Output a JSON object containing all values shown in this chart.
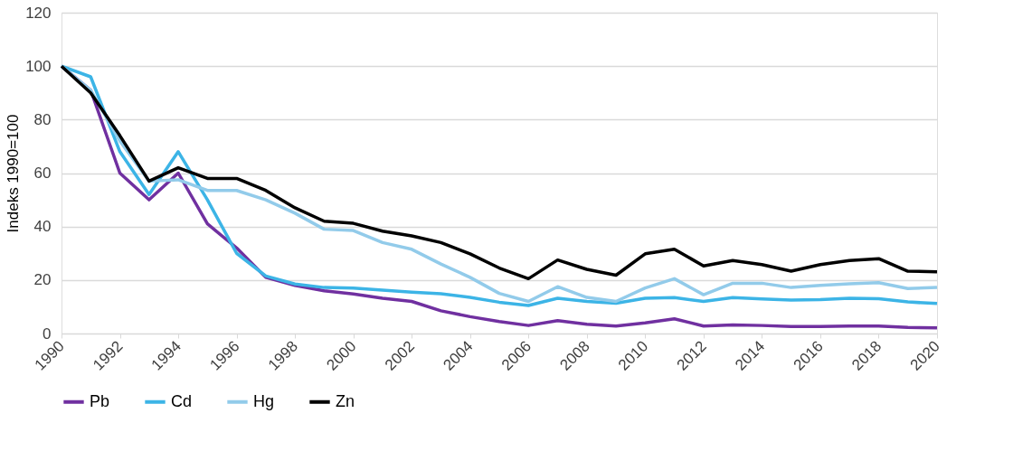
{
  "chart_data": {
    "type": "line",
    "ylabel": "Indeks 1990=100",
    "x": [
      1990,
      1991,
      1992,
      1993,
      1994,
      1995,
      1996,
      1997,
      1998,
      1999,
      2000,
      2001,
      2002,
      2003,
      2004,
      2005,
      2006,
      2007,
      2008,
      2009,
      2010,
      2011,
      2012,
      2013,
      2014,
      2015,
      2016,
      2017,
      2018,
      2019,
      2020
    ],
    "series": [
      {
        "name": "Pb",
        "color": "#7030a0",
        "values": [
          100,
          91,
          60,
          50,
          60,
          41,
          32,
          21,
          18,
          16,
          14.8,
          13.2,
          12,
          8.5,
          6.3,
          4.5,
          3,
          4.8,
          3.5,
          2.8,
          4,
          5.5,
          2.8,
          3.2,
          3,
          2.6,
          2.6,
          2.8,
          2.8,
          2.3,
          2.1
        ]
      },
      {
        "name": "Cd",
        "color": "#3cb4e6",
        "values": [
          100,
          96,
          68,
          52,
          68,
          50,
          30,
          21.5,
          18.5,
          17.2,
          17,
          16.2,
          15.5,
          14.9,
          13.5,
          11.7,
          10.5,
          13.2,
          12,
          11.3,
          13.2,
          13.4,
          12,
          13.4,
          12.9,
          12.5,
          12.7,
          13.2,
          13,
          11.8,
          11.2
        ]
      },
      {
        "name": "Hg",
        "color": "#92cbea",
        "values": [
          100,
          91,
          72,
          57,
          57.5,
          53.5,
          53.5,
          50,
          45,
          39,
          38.5,
          34,
          31.5,
          26,
          21,
          15,
          12,
          17.5,
          13.5,
          12,
          17,
          20.5,
          14.5,
          18.8,
          18.8,
          17.2,
          18,
          18.6,
          19,
          16.8,
          17.2
        ]
      },
      {
        "name": "Zn",
        "color": "#000000",
        "values": [
          100,
          90,
          74,
          57,
          62,
          58,
          58,
          53.5,
          47,
          42,
          41.2,
          38.3,
          36.5,
          34,
          29.8,
          24.5,
          20.5,
          27.5,
          24,
          21.8,
          29.8,
          31.5,
          25.3,
          27.3,
          25.8,
          23.3,
          25.8,
          27.3,
          28,
          23.3,
          23.1
        ]
      }
    ],
    "xlim": [
      1990,
      2020
    ],
    "xticks": [
      1990,
      1992,
      1994,
      1996,
      1998,
      2000,
      2002,
      2004,
      2006,
      2008,
      2010,
      2012,
      2014,
      2016,
      2018,
      2020
    ],
    "ylim": [
      0,
      120
    ],
    "yticks": [
      0,
      20,
      40,
      60,
      80,
      100,
      120
    ],
    "grid": "y",
    "legend": "bottom",
    "marker": "none",
    "line_style": "solid"
  }
}
